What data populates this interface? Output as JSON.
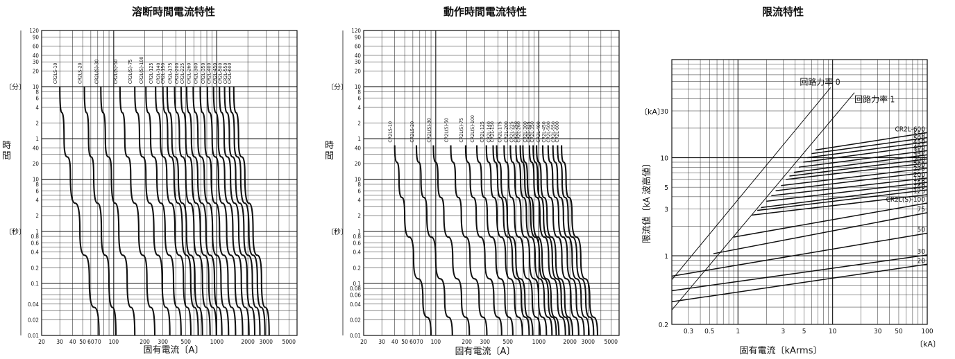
{
  "chart_data": [
    {
      "type": "line",
      "title": "溶断時間電流特性",
      "xlabel": "固有電流〔A〕",
      "x_scale": "log",
      "y_scale": "log",
      "xlim": [
        20,
        6000
      ],
      "ylim_seconds": [
        0.01,
        7200
      ],
      "x_ticks": [
        "20",
        "30",
        "40",
        "50",
        "60",
        "70",
        "100",
        "200",
        "300",
        "500",
        "1000",
        "2000",
        "3000",
        "5000"
      ],
      "y_ticks_sec": [
        "0.01",
        "0.02",
        "0.04",
        "0.1",
        "0.2",
        "0.4",
        "0.6",
        "0.8",
        "1",
        "2",
        "4",
        "6",
        "8",
        "10",
        "20",
        "40"
      ],
      "y_ticks_min": [
        "1",
        "2",
        "4",
        "6",
        "8",
        "10",
        "20",
        "30",
        "40",
        "60",
        "90",
        "120"
      ],
      "y_unit_labels": {
        "minutes": "〔分〕",
        "hours_label": "時間",
        "seconds": "〔秒〕"
      },
      "series": [
        {
          "name": "CR2LS-10",
          "x": [
            30,
            33,
            38,
            47,
            58,
            72
          ],
          "y": [
            600,
            60,
            12,
            1,
            0.12,
            0.01
          ]
        },
        {
          "name": "CR2LS-20",
          "x": [
            52,
            57,
            64,
            76,
            90,
            105
          ],
          "y": [
            600,
            60,
            12,
            1,
            0.12,
            0.01
          ]
        },
        {
          "name": "CR2L(S)-30",
          "x": [
            75,
            83,
            95,
            112,
            135,
            160
          ],
          "y": [
            600,
            60,
            12,
            1,
            0.12,
            0.01
          ]
        },
        {
          "name": "CR2L(S)-50",
          "x": [
            115,
            128,
            146,
            175,
            210,
            250
          ],
          "y": [
            600,
            60,
            12,
            1,
            0.12,
            0.01
          ]
        },
        {
          "name": "CR2L(S)-75",
          "x": [
            160,
            178,
            205,
            245,
            295,
            350
          ],
          "y": [
            600,
            60,
            12,
            1,
            0.12,
            0.01
          ]
        },
        {
          "name": "CR2L(S)-100",
          "x": [
            205,
            228,
            262,
            315,
            380,
            450
          ],
          "y": [
            600,
            60,
            12,
            1,
            0.12,
            0.01
          ]
        },
        {
          "name": "CR2L-125",
          "x": [
            255,
            284,
            327,
            393,
            475,
            560
          ],
          "y": [
            600,
            60,
            12,
            1,
            0.12,
            0.01
          ]
        },
        {
          "name": "CR2L-140",
          "x": [
            300,
            334,
            385,
            462,
            558,
            660
          ],
          "y": [
            600,
            60,
            12,
            1,
            0.12,
            0.01
          ]
        },
        {
          "name": "CR2L-150",
          "x": [
            330,
            367,
            423,
            508,
            613,
            725
          ],
          "y": [
            600,
            60,
            12,
            1,
            0.12,
            0.01
          ]
        },
        {
          "name": "CR2L-175",
          "x": [
            390,
            434,
            500,
            600,
            725,
            860
          ],
          "y": [
            600,
            60,
            12,
            1,
            0.12,
            0.01
          ]
        },
        {
          "name": "CR2L-200",
          "x": [
            450,
            500,
            576,
            692,
            836,
            990
          ],
          "y": [
            600,
            60,
            12,
            1,
            0.12,
            0.01
          ]
        },
        {
          "name": "CR2L-225",
          "x": [
            510,
            567,
            653,
            785,
            948,
            1120
          ],
          "y": [
            600,
            60,
            12,
            1,
            0.12,
            0.01
          ]
        },
        {
          "name": "CR2L-260",
          "x": [
            590,
            656,
            756,
            908,
            1097,
            1300
          ],
          "y": [
            600,
            60,
            12,
            1,
            0.12,
            0.01
          ]
        },
        {
          "name": "CR2L-300",
          "x": [
            690,
            767,
            884,
            1062,
            1283,
            1520
          ],
          "y": [
            600,
            60,
            12,
            1,
            0.12,
            0.01
          ]
        },
        {
          "name": "CR2L-350",
          "x": [
            810,
            901,
            1038,
            1247,
            1506,
            1780
          ],
          "y": [
            600,
            60,
            12,
            1,
            0.12,
            0.01
          ]
        },
        {
          "name": "CR2L-400",
          "x": [
            930,
            1034,
            1192,
            1431,
            1729,
            2050
          ],
          "y": [
            600,
            60,
            12,
            1,
            0.12,
            0.01
          ]
        },
        {
          "name": "CR2L-450",
          "x": [
            1060,
            1179,
            1358,
            1631,
            1970,
            2330
          ],
          "y": [
            600,
            60,
            12,
            1,
            0.12,
            0.01
          ]
        },
        {
          "name": "CR2L-500",
          "x": [
            1190,
            1324,
            1525,
            1831,
            2212,
            2620
          ],
          "y": [
            600,
            60,
            12,
            1,
            0.12,
            0.01
          ]
        },
        {
          "name": "CR2L-550",
          "x": [
            1330,
            1479,
            1704,
            2047,
            2473,
            2930
          ],
          "y": [
            600,
            60,
            12,
            1,
            0.12,
            0.01
          ]
        },
        {
          "name": "CR2L-600",
          "x": [
            1460,
            1624,
            1871,
            2247,
            2714,
            3220
          ],
          "y": [
            600,
            60,
            12,
            1,
            0.12,
            0.01
          ]
        }
      ]
    },
    {
      "type": "line",
      "title": "動作時間電流特性",
      "xlabel": "固有電流〔A〕",
      "x_scale": "log",
      "y_scale": "log",
      "xlim": [
        20,
        6000
      ],
      "ylim_seconds": [
        0.01,
        7200
      ],
      "x_ticks": [
        "20",
        "30",
        "40",
        "50",
        "60",
        "70",
        "100",
        "200",
        "300",
        "500",
        "1000",
        "2000",
        "3000",
        "5000"
      ],
      "y_ticks_sec": [
        "0.01",
        "0.02",
        "0.04",
        "0.06",
        "0.08",
        "0.1",
        "0.2",
        "0.4",
        "0.6",
        "0.8",
        "1",
        "2",
        "4",
        "6",
        "8",
        "10",
        "20",
        "40"
      ],
      "y_ticks_min": [
        "1",
        "2",
        "4",
        "6",
        "8",
        "10",
        "20",
        "30",
        "40",
        "60",
        "90",
        "120"
      ],
      "y_unit_labels": {
        "minutes": "〔分〕",
        "hours_label": "時間",
        "seconds": "〔秒〕"
      },
      "series": [
        {
          "name": "CR2LS-10",
          "x": [
            40,
            44,
            50,
            61,
            75,
            90
          ],
          "y": [
            45,
            10,
            2,
            0.3,
            0.05,
            0.01
          ]
        },
        {
          "name": "CR2LS-20",
          "x": [
            65,
            72,
            82,
            100,
            122,
            145
          ],
          "y": [
            45,
            10,
            2,
            0.3,
            0.05,
            0.01
          ]
        },
        {
          "name": "CR2L(S)-30",
          "x": [
            95,
            105,
            120,
            146,
            178,
            212
          ],
          "y": [
            45,
            10,
            2,
            0.3,
            0.05,
            0.01
          ]
        },
        {
          "name": "CR2L(S)-50",
          "x": [
            140,
            155,
            177,
            215,
            263,
            313
          ],
          "y": [
            45,
            10,
            2,
            0.3,
            0.05,
            0.01
          ]
        },
        {
          "name": "CR2L(S)-75",
          "x": [
            195,
            216,
            247,
            300,
            366,
            436
          ],
          "y": [
            45,
            10,
            2,
            0.3,
            0.05,
            0.01
          ]
        },
        {
          "name": "CR2L(S)-100",
          "x": [
            250,
            277,
            316,
            384,
            469,
            559
          ],
          "y": [
            45,
            10,
            2,
            0.3,
            0.05,
            0.01
          ]
        },
        {
          "name": "CR2L-125",
          "x": [
            310,
            343,
            392,
            476,
            582,
            693
          ],
          "y": [
            45,
            10,
            2,
            0.3,
            0.05,
            0.01
          ]
        },
        {
          "name": "CR2L-140",
          "x": [
            360,
            398,
            455,
            553,
            676,
            805
          ],
          "y": [
            45,
            10,
            2,
            0.3,
            0.05,
            0.01
          ]
        },
        {
          "name": "CR2L-150",
          "x": [
            390,
            431,
            493,
            599,
            732,
            872
          ],
          "y": [
            45,
            10,
            2,
            0.3,
            0.05,
            0.01
          ]
        },
        {
          "name": "CR2L-175",
          "x": [
            460,
            509,
            581,
            706,
            863,
            1028
          ],
          "y": [
            45,
            10,
            2,
            0.3,
            0.05,
            0.01
          ]
        },
        {
          "name": "CR2L-200",
          "x": [
            530,
            586,
            670,
            814,
            994,
            1184
          ],
          "y": [
            45,
            10,
            2,
            0.3,
            0.05,
            0.01
          ]
        },
        {
          "name": "CR2L-225",
          "x": [
            600,
            664,
            758,
            921,
            1126,
            1341
          ],
          "y": [
            45,
            10,
            2,
            0.3,
            0.05,
            0.01
          ]
        },
        {
          "name": "CR2L-250",
          "x": [
            660,
            730,
            834,
            1013,
            1238,
            1475
          ],
          "y": [
            45,
            10,
            2,
            0.3,
            0.05,
            0.01
          ]
        },
        {
          "name": "CR2L-260",
          "x": [
            700,
            774,
            885,
            1075,
            1313,
            1564
          ],
          "y": [
            45,
            10,
            2,
            0.3,
            0.05,
            0.01
          ]
        },
        {
          "name": "CR2L-300",
          "x": [
            810,
            896,
            1024,
            1244,
            1519,
            1810
          ],
          "y": [
            45,
            10,
            2,
            0.3,
            0.05,
            0.01
          ]
        },
        {
          "name": "CR2L-325",
          "x": [
            880,
            973,
            1112,
            1351,
            1651,
            1966
          ],
          "y": [
            45,
            10,
            2,
            0.3,
            0.05,
            0.01
          ]
        },
        {
          "name": "CR2L-350",
          "x": [
            950,
            1051,
            1201,
            1459,
            1782,
            2123
          ],
          "y": [
            45,
            10,
            2,
            0.3,
            0.05,
            0.01
          ]
        },
        {
          "name": "CR2L-400",
          "x": [
            1090,
            1206,
            1378,
            1674,
            2045,
            2436
          ],
          "y": [
            45,
            10,
            2,
            0.3,
            0.05,
            0.01
          ]
        },
        {
          "name": "CR2L-450",
          "x": [
            1230,
            1361,
            1555,
            1889,
            2308,
            2749
          ],
          "y": [
            45,
            10,
            2,
            0.3,
            0.05,
            0.01
          ]
        },
        {
          "name": "CR2L-500",
          "x": [
            1370,
            1515,
            1732,
            2104,
            2570,
            3062
          ],
          "y": [
            45,
            10,
            2,
            0.3,
            0.05,
            0.01
          ]
        },
        {
          "name": "CR2L-550",
          "x": [
            1520,
            1681,
            1922,
            2334,
            2852,
            3397
          ],
          "y": [
            45,
            10,
            2,
            0.3,
            0.05,
            0.01
          ]
        },
        {
          "name": "CR2L-600",
          "x": [
            1660,
            1836,
            2099,
            2549,
            3114,
            3710
          ],
          "y": [
            45,
            10,
            2,
            0.3,
            0.05,
            0.01
          ]
        }
      ]
    },
    {
      "type": "line",
      "title": "限流特性",
      "xlabel": "固有電流〔kArms〕",
      "ylabel": "限流値〔kA 波高値〕",
      "x_unit_label": "〔kA〕",
      "y_unit_label": "〔kA〕",
      "x_scale": "log",
      "y_scale": "log",
      "xlim": [
        0.2,
        100
      ],
      "ylim": [
        0.2,
        100
      ],
      "x_ticks": [
        "0.3",
        "0.5",
        "1",
        "3",
        "5",
        "10",
        "30",
        "50",
        "100"
      ],
      "y_ticks": [
        "0.2",
        "1",
        "3",
        "5",
        "10",
        "30"
      ],
      "reference_lines": [
        {
          "name": "回路力率 0",
          "x": [
            0.2,
            9.5
          ],
          "y": [
            0.57,
            27
          ]
        },
        {
          "name": "回路力率 1",
          "x": [
            0.2,
            17
          ],
          "y": [
            0.28,
            24
          ]
        }
      ],
      "series": [
        {
          "name": "20",
          "x": [
            0.2,
            100
          ],
          "y": [
            0.34,
            0.82
          ]
        },
        {
          "name": "30",
          "x": [
            0.2,
            100
          ],
          "y": [
            0.44,
            1.02
          ]
        },
        {
          "name": "50",
          "x": [
            0.2,
            100
          ],
          "y": [
            0.62,
            1.7
          ]
        },
        {
          "name": "CR2L(S)-100",
          "x": [
            0.9,
            100
          ],
          "y": [
            1.55,
            3.45
          ]
        },
        {
          "name": "75",
          "x": [
            0.55,
            100
          ],
          "y": [
            1.05,
            2.75
          ]
        },
        {
          "name": "125",
          "x": [
            1.4,
            100
          ],
          "y": [
            2.6,
            4.2
          ]
        },
        {
          "name": "140",
          "x": [
            1.6,
            100
          ],
          "y": [
            2.9,
            4.7
          ]
        },
        {
          "name": "150",
          "x": [
            1.75,
            100
          ],
          "y": [
            3.1,
            5.1
          ]
        },
        {
          "name": "175",
          "x": [
            2.0,
            100
          ],
          "y": [
            3.6,
            5.6
          ]
        },
        {
          "name": "200",
          "x": [
            2.25,
            100
          ],
          "y": [
            4.1,
            6.2
          ]
        },
        {
          "name": "225",
          "x": [
            2.5,
            100
          ],
          "y": [
            4.6,
            7.1
          ]
        },
        {
          "name": "260",
          "x": [
            2.85,
            100
          ],
          "y": [
            5.2,
            7.8
          ]
        },
        {
          "name": "300",
          "x": [
            3.2,
            100
          ],
          "y": [
            6.0,
            8.8
          ]
        },
        {
          "name": "325",
          "x": [
            3.5,
            100
          ],
          "y": [
            6.5,
            9.7
          ]
        },
        {
          "name": "350",
          "x": [
            3.9,
            100
          ],
          "y": [
            7.1,
            10.7
          ]
        },
        {
          "name": "400",
          "x": [
            4.4,
            100
          ],
          "y": [
            8.0,
            11.8
          ]
        },
        {
          "name": "450",
          "x": [
            4.9,
            100
          ],
          "y": [
            9.0,
            13.3
          ]
        },
        {
          "name": "500",
          "x": [
            5.4,
            100
          ],
          "y": [
            10.0,
            14.5
          ]
        },
        {
          "name": "550",
          "x": [
            6.0,
            100
          ],
          "y": [
            11.0,
            16.0
          ]
        },
        {
          "name": "CR2L-600",
          "x": [
            6.6,
            100
          ],
          "y": [
            12.0,
            18.0
          ]
        }
      ]
    }
  ]
}
